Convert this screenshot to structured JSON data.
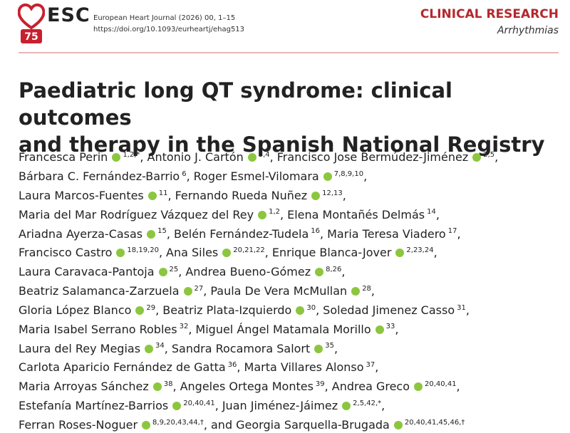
{
  "header": {
    "logo_text": "75",
    "brand": "ESC",
    "journal": "European Heart Journal (2026) 00, 1–15",
    "doi": "https://doi.org/10.1093/eurheartj/ehag513",
    "section": "CLINICAL RESEARCH",
    "subsection": "Arrhythmias"
  },
  "title": [
    "Paediatric long QT syndrome: clinical outcomes",
    "and therapy in the Spanish National Registry"
  ],
  "authors": [
    [
      {
        "name": "Francesca Perin",
        "orcid": true,
        "sup": "1,2,*",
        "sep": ","
      },
      {
        "name": "Antonio J. Cartón",
        "orcid": true,
        "sup": "3,4",
        "sep": ","
      },
      {
        "name": "Francisco Jose Bermúdez-Jiménez",
        "orcid": true,
        "sup": "2,5",
        "sep": ","
      }
    ],
    [
      {
        "name": "Bárbara C. Fernández-Barrio",
        "orcid": false,
        "sup": "6",
        "sep": ","
      },
      {
        "name": "Roger Esmel-Vilomara",
        "orcid": true,
        "sup": "7,8,9,10",
        "sep": ","
      }
    ],
    [
      {
        "name": "Laura Marcos-Fuentes",
        "orcid": true,
        "sup": "11",
        "sep": ","
      },
      {
        "name": "Fernando Rueda Nuñez",
        "orcid": true,
        "sup": "12,13",
        "sep": ","
      }
    ],
    [
      {
        "name": "Maria del Mar Rodríguez Vázquez del Rey",
        "orcid": true,
        "sup": "1,2",
        "sep": ","
      },
      {
        "name": "Elena Montañés Delmás",
        "orcid": false,
        "sup": "14",
        "sep": ","
      }
    ],
    [
      {
        "name": "Ariadna Ayerza-Casas",
        "orcid": true,
        "sup": "15",
        "sep": ","
      },
      {
        "name": "Belén Fernández-Tudela",
        "orcid": false,
        "sup": "16",
        "sep": ","
      },
      {
        "name": "Maria Teresa Viadero",
        "orcid": false,
        "sup": "17",
        "sep": ","
      }
    ],
    [
      {
        "name": "Francisco Castro",
        "orcid": true,
        "sup": "18,19,20",
        "sep": ","
      },
      {
        "name": "Ana Siles",
        "orcid": true,
        "sup": "20,21,22",
        "sep": ","
      },
      {
        "name": "Enrique Blanca-Jover",
        "orcid": true,
        "sup": "2,23,24",
        "sep": ","
      }
    ],
    [
      {
        "name": "Laura Caravaca-Pantoja",
        "orcid": true,
        "sup": "25",
        "sep": ","
      },
      {
        "name": "Andrea Bueno-Gómez",
        "orcid": true,
        "sup": "8,26",
        "sep": ","
      }
    ],
    [
      {
        "name": "Beatriz Salamanca-Zarzuela",
        "orcid": true,
        "sup": "27",
        "sep": ","
      },
      {
        "name": "Paula De Vera McMullan",
        "orcid": true,
        "sup": "28",
        "sep": ","
      }
    ],
    [
      {
        "name": "Gloria López Blanco",
        "orcid": true,
        "sup": "29",
        "sep": ","
      },
      {
        "name": "Beatriz Plata-Izquierdo",
        "orcid": true,
        "sup": "30",
        "sep": ","
      },
      {
        "name": "Soledad Jimenez Casso",
        "orcid": false,
        "sup": "31",
        "sep": ","
      }
    ],
    [
      {
        "name": "Maria Isabel Serrano Robles",
        "orcid": false,
        "sup": "32",
        "sep": ","
      },
      {
        "name": "Miguel Ángel Matamala Morillo",
        "orcid": true,
        "sup": "33",
        "sep": ","
      }
    ],
    [
      {
        "name": "Laura del Rey Megias",
        "orcid": true,
        "sup": "34",
        "sep": ","
      },
      {
        "name": "Sandra Rocamora Salort",
        "orcid": true,
        "sup": "35",
        "sep": ","
      }
    ],
    [
      {
        "name": "Carlota Aparicio Fernández de Gatta",
        "orcid": false,
        "sup": "36",
        "sep": ","
      },
      {
        "name": "Marta Villares Alonso",
        "orcid": false,
        "sup": "37",
        "sep": ","
      }
    ],
    [
      {
        "name": "Maria Arroyas Sánchez",
        "orcid": true,
        "sup": "38",
        "sep": ","
      },
      {
        "name": "Angeles Ortega Montes",
        "orcid": false,
        "sup": "39",
        "sep": ","
      },
      {
        "name": "Andrea Greco",
        "orcid": true,
        "sup": "20,40,41",
        "sep": ","
      }
    ],
    [
      {
        "name": "Estefanía Martínez-Barrios",
        "orcid": true,
        "sup": "20,40,41",
        "sep": ","
      },
      {
        "name": "Juan Jiménez-Jáimez",
        "orcid": true,
        "sup": "2,5,42,*",
        "sep": ","
      }
    ],
    [
      {
        "name": "Ferran Roses-Noguer",
        "orcid": true,
        "sup": "8,9,20,43,44,†",
        "sep": ", and"
      },
      {
        "name": "Georgia Sarquella-Brugada",
        "orcid": true,
        "sup": "20,40,41,45,46,†"
      }
    ]
  ]
}
